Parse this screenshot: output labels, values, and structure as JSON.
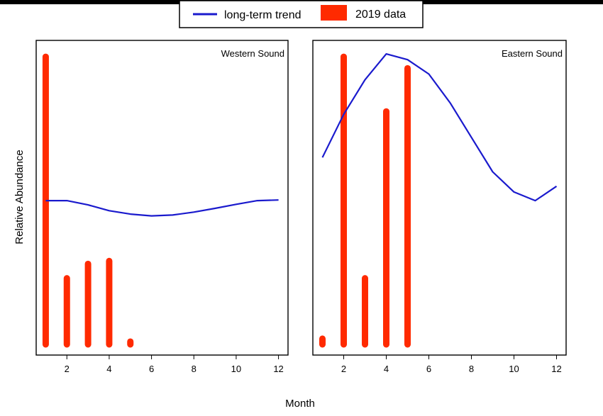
{
  "chart_data": {
    "type": "bar+line",
    "xlabel": "Month",
    "ylabel": "Relative Abundance",
    "legend": {
      "placement": "top-center",
      "entries": [
        {
          "label": "long-term trend",
          "kind": "line",
          "color": "#1a1acd"
        },
        {
          "label": "2019 data",
          "kind": "bar",
          "color": "#ff2a00"
        }
      ]
    },
    "x_ticks": [
      2,
      4,
      6,
      8,
      10,
      12
    ],
    "xlim": [
      0.55,
      12.45
    ],
    "ylim": [
      0,
      1.02
    ],
    "y_ticks_shown": false,
    "panels": [
      {
        "name": "Western Sound",
        "bars": {
          "x": [
            1,
            2,
            3,
            4,
            5
          ],
          "y": [
            1.0,
            0.23,
            0.28,
            0.29,
            0.01
          ]
        },
        "trend": {
          "x": [
            1,
            2,
            3,
            4,
            5,
            6,
            7,
            8,
            9,
            10,
            11,
            12
          ],
          "y": [
            0.5,
            0.5,
            0.485,
            0.465,
            0.453,
            0.447,
            0.45,
            0.46,
            0.473,
            0.487,
            0.5,
            0.502
          ]
        }
      },
      {
        "name": "Eastern Sound",
        "bars": {
          "x": [
            1,
            2,
            3,
            4,
            5
          ],
          "y": [
            0.02,
            1.0,
            0.23,
            0.81,
            0.96
          ]
        },
        "trend": {
          "x": [
            1,
            2,
            3,
            4,
            5,
            6,
            7,
            8,
            9,
            10,
            11,
            12
          ],
          "y": [
            0.65,
            0.8,
            0.92,
            1.01,
            0.99,
            0.94,
            0.84,
            0.72,
            0.6,
            0.53,
            0.5,
            0.55
          ]
        }
      }
    ]
  }
}
